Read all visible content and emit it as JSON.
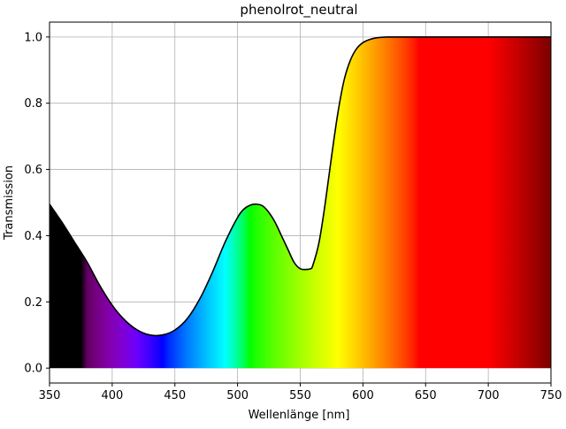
{
  "chart_data": {
    "type": "area",
    "title": "phenolrot_neutral",
    "xlabel": "Wellenlänge [nm]",
    "ylabel": "Transmission",
    "xlim": [
      350,
      750
    ],
    "ylim": [
      -0.045,
      1.045
    ],
    "xticks": [
      350,
      400,
      450,
      500,
      550,
      600,
      650,
      700,
      750
    ],
    "yticks": [
      0.0,
      0.2,
      0.4,
      0.6,
      0.8,
      1.0
    ],
    "xtick_labels": [
      "350",
      "400",
      "450",
      "500",
      "550",
      "600",
      "650",
      "700",
      "750"
    ],
    "ytick_labels": [
      "0.0",
      "0.2",
      "0.4",
      "0.6",
      "0.8",
      "1.0"
    ],
    "grid": true,
    "fill": "visible-spectrum colors under the curve",
    "line_color": "#000000",
    "series": [
      {
        "x": [
          350,
          360,
          370,
          380,
          390,
          400,
          410,
          420,
          430,
          440,
          450,
          460,
          470,
          480,
          490,
          500,
          505,
          510,
          515,
          520,
          525,
          530,
          535,
          540,
          545,
          550,
          555,
          558,
          560,
          565,
          570,
          575,
          580,
          585,
          590,
          595,
          600,
          605,
          610,
          615,
          620,
          625,
          630,
          640,
          650,
          700,
          750
        ],
        "y": [
          0.495,
          0.44,
          0.38,
          0.32,
          0.25,
          0.19,
          0.145,
          0.115,
          0.1,
          0.1,
          0.115,
          0.15,
          0.21,
          0.29,
          0.38,
          0.455,
          0.48,
          0.492,
          0.495,
          0.49,
          0.47,
          0.44,
          0.4,
          0.36,
          0.32,
          0.3,
          0.298,
          0.3,
          0.31,
          0.38,
          0.5,
          0.64,
          0.77,
          0.87,
          0.93,
          0.965,
          0.983,
          0.992,
          0.997,
          0.999,
          1.0,
          1.0,
          1.0,
          1.0,
          1.0,
          1.0,
          1.0
        ]
      }
    ]
  }
}
